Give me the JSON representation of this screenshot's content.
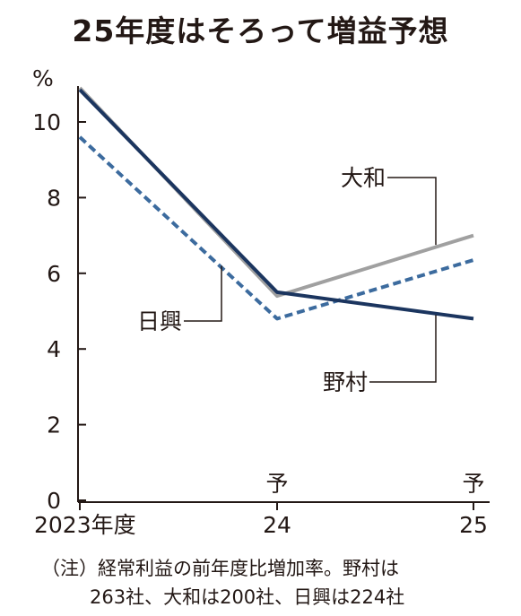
{
  "title": "25年度はそろって増益予想",
  "note": {
    "line1": "（注）経常利益の前年度比増加率。野村は",
    "line2": "263社、大和は200社、日興は224社"
  },
  "chart_data": {
    "type": "line",
    "title": "25年度はそろって増益予想",
    "ylabel": "%",
    "xlabel": "",
    "x": [
      "2023年度",
      "24",
      "25"
    ],
    "forecast_marks": [
      "予",
      "予"
    ],
    "ylim": [
      0,
      11
    ],
    "yticks": [
      0,
      2,
      4,
      6,
      8,
      10
    ],
    "grid": false,
    "series": [
      {
        "name": "大和",
        "values": [
          10.9,
          5.4,
          7.0
        ],
        "color": "#a0a0a0",
        "style": "solid"
      },
      {
        "name": "日興",
        "values": [
          9.6,
          4.8,
          6.35
        ],
        "color": "#3c6b9e",
        "style": "dashed"
      },
      {
        "name": "野村",
        "values": [
          10.85,
          5.5,
          4.8
        ],
        "color": "#1b355f",
        "style": "solid"
      }
    ]
  }
}
